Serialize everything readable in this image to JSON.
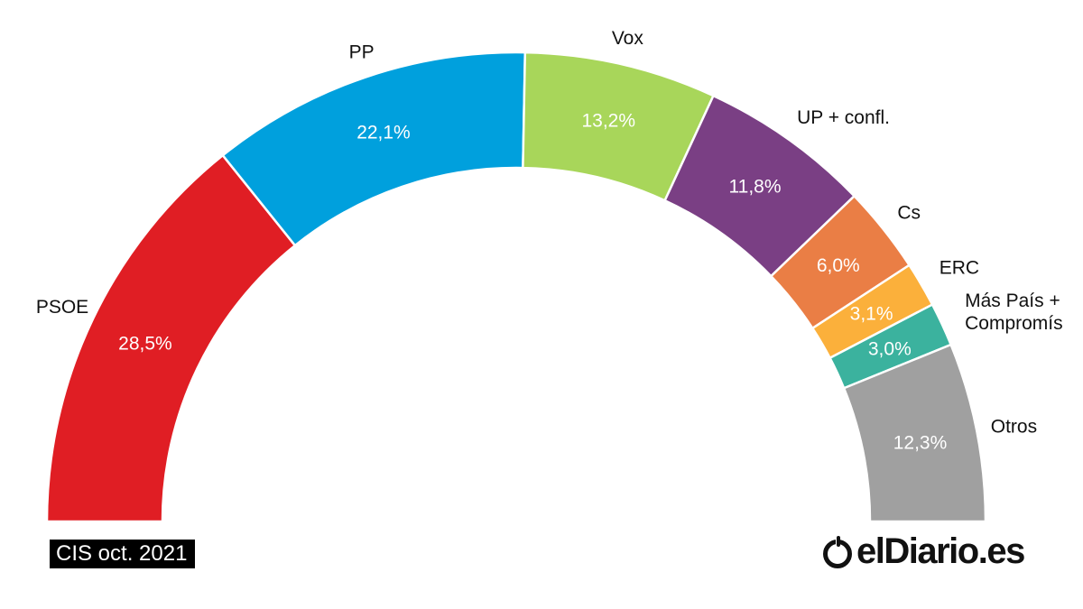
{
  "chart_data": {
    "type": "pie",
    "subtype": "semicircle-donut",
    "series": [
      {
        "name": "PSOE",
        "value": 28.5,
        "label": "28,5%",
        "color": "#e01e24"
      },
      {
        "name": "PP",
        "value": 22.1,
        "label": "22,1%",
        "color": "#00a0dd"
      },
      {
        "name": "Vox",
        "value": 13.2,
        "label": "13,2%",
        "color": "#a8d65a"
      },
      {
        "name": "UP + confl.",
        "value": 11.8,
        "label": "11,8%",
        "color": "#7a3f84"
      },
      {
        "name": "Cs",
        "value": 6.0,
        "label": "6,0%",
        "color": "#ea7e45"
      },
      {
        "name": "ERC",
        "value": 3.1,
        "label": "3,1%",
        "color": "#fbb03b"
      },
      {
        "name": "Más País + Compromís",
        "value": 3.0,
        "label": "3,0%",
        "color": "#3bb29e"
      },
      {
        "name": "Otros",
        "value": 12.3,
        "label": "12,3%",
        "color": "#a0a0a0"
      }
    ]
  },
  "source": "CIS oct. 2021",
  "logo_text": "elDiario.es",
  "logo_icon": "eldiario-logo-icon"
}
